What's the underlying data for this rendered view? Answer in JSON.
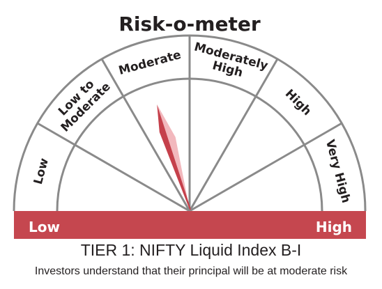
{
  "title": "Risk-o-meter",
  "segments": [
    {
      "lines": [
        "Low"
      ]
    },
    {
      "lines": [
        "Low to",
        "Moderate"
      ]
    },
    {
      "lines": [
        "Moderate"
      ]
    },
    {
      "lines": [
        "Moderately",
        "High"
      ]
    },
    {
      "lines": [
        "High"
      ]
    },
    {
      "lines": [
        "Very High"
      ]
    }
  ],
  "bar": {
    "low_label": "Low",
    "high_label": "High"
  },
  "risk_level": "Moderate",
  "scheme_name": "TIER 1: NIFTY Liquid Index B-I",
  "disclaimer": "Investors understand that their principal will be at moderate risk",
  "colors": {
    "needle": "#c5404b",
    "needle_light": "#f2b8bd",
    "bar": "#c5474f",
    "stroke": "#8a8a8a"
  }
}
